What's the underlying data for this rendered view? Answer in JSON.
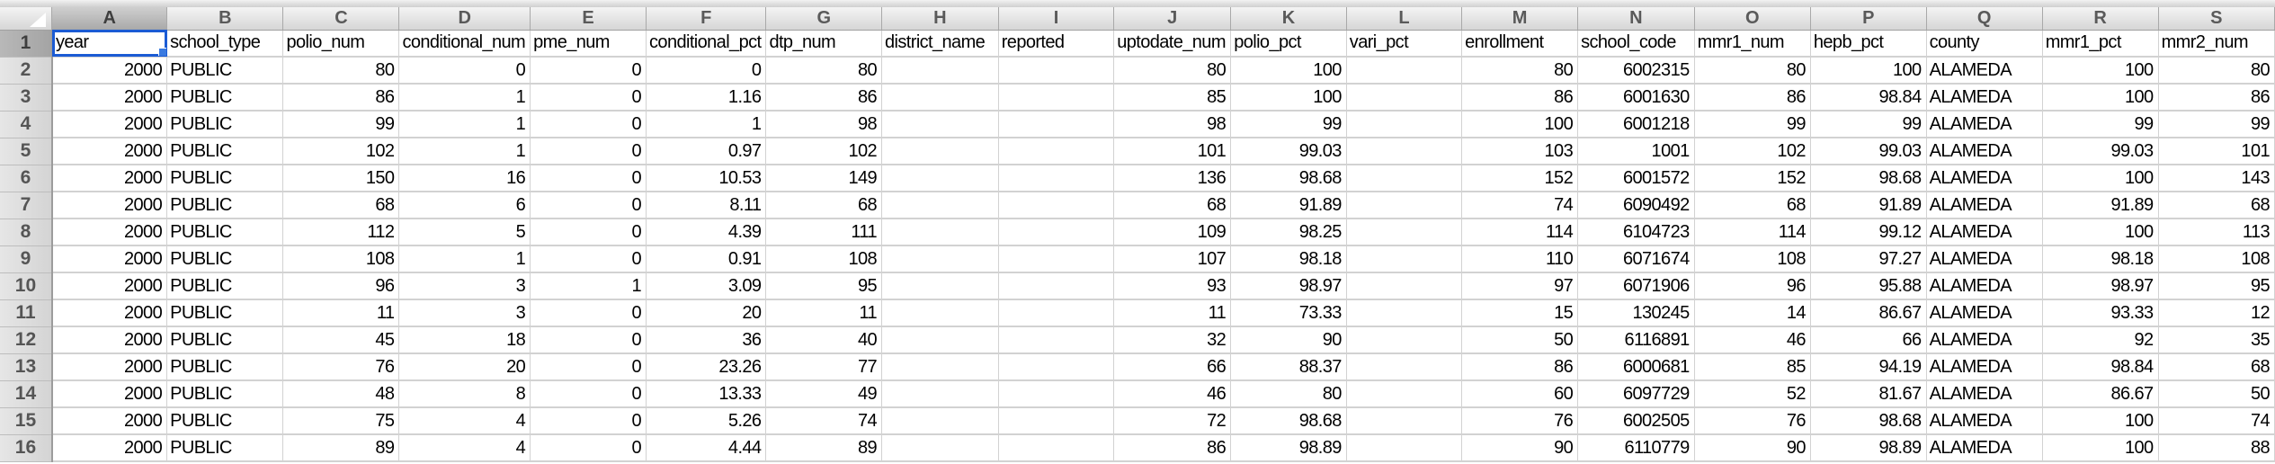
{
  "sheet": {
    "columns": [
      "A",
      "B",
      "C",
      "D",
      "E",
      "F",
      "G",
      "H",
      "I",
      "J",
      "K",
      "L",
      "M",
      "N",
      "O",
      "P",
      "Q",
      "R",
      "S"
    ],
    "selected_cell": "A1",
    "rows": [
      [
        "year",
        "school_type",
        "polio_num",
        "conditional_num",
        "pme_num",
        "conditional_pct",
        "dtp_num",
        "district_name",
        "reported",
        "uptodate_num",
        "polio_pct",
        "vari_pct",
        "enrollment",
        "school_code",
        "mmr1_num",
        "hepb_pct",
        "county",
        "mmr1_pct",
        "mmr2_num"
      ],
      [
        "2000",
        "PUBLIC",
        "80",
        "0",
        "0",
        "0",
        "80",
        "",
        "",
        "80",
        "100",
        "",
        "80",
        "6002315",
        "80",
        "100",
        "ALAMEDA",
        "100",
        "80"
      ],
      [
        "2000",
        "PUBLIC",
        "86",
        "1",
        "0",
        "1.16",
        "86",
        "",
        "",
        "85",
        "100",
        "",
        "86",
        "6001630",
        "86",
        "98.84",
        "ALAMEDA",
        "100",
        "86"
      ],
      [
        "2000",
        "PUBLIC",
        "99",
        "1",
        "0",
        "1",
        "98",
        "",
        "",
        "98",
        "99",
        "",
        "100",
        "6001218",
        "99",
        "99",
        "ALAMEDA",
        "99",
        "99"
      ],
      [
        "2000",
        "PUBLIC",
        "102",
        "1",
        "0",
        "0.97",
        "102",
        "",
        "",
        "101",
        "99.03",
        "",
        "103",
        "1001",
        "102",
        "99.03",
        "ALAMEDA",
        "99.03",
        "101"
      ],
      [
        "2000",
        "PUBLIC",
        "150",
        "16",
        "0",
        "10.53",
        "149",
        "",
        "",
        "136",
        "98.68",
        "",
        "152",
        "6001572",
        "152",
        "98.68",
        "ALAMEDA",
        "100",
        "143"
      ],
      [
        "2000",
        "PUBLIC",
        "68",
        "6",
        "0",
        "8.11",
        "68",
        "",
        "",
        "68",
        "91.89",
        "",
        "74",
        "6090492",
        "68",
        "91.89",
        "ALAMEDA",
        "91.89",
        "68"
      ],
      [
        "2000",
        "PUBLIC",
        "112",
        "5",
        "0",
        "4.39",
        "111",
        "",
        "",
        "109",
        "98.25",
        "",
        "114",
        "6104723",
        "114",
        "99.12",
        "ALAMEDA",
        "100",
        "113"
      ],
      [
        "2000",
        "PUBLIC",
        "108",
        "1",
        "0",
        "0.91",
        "108",
        "",
        "",
        "107",
        "98.18",
        "",
        "110",
        "6071674",
        "108",
        "97.27",
        "ALAMEDA",
        "98.18",
        "108"
      ],
      [
        "2000",
        "PUBLIC",
        "96",
        "3",
        "1",
        "3.09",
        "95",
        "",
        "",
        "93",
        "98.97",
        "",
        "97",
        "6071906",
        "96",
        "95.88",
        "ALAMEDA",
        "98.97",
        "95"
      ],
      [
        "2000",
        "PUBLIC",
        "11",
        "3",
        "0",
        "20",
        "11",
        "",
        "",
        "11",
        "73.33",
        "",
        "15",
        "130245",
        "14",
        "86.67",
        "ALAMEDA",
        "93.33",
        "12"
      ],
      [
        "2000",
        "PUBLIC",
        "45",
        "18",
        "0",
        "36",
        "40",
        "",
        "",
        "32",
        "90",
        "",
        "50",
        "6116891",
        "46",
        "66",
        "ALAMEDA",
        "92",
        "35"
      ],
      [
        "2000",
        "PUBLIC",
        "76",
        "20",
        "0",
        "23.26",
        "77",
        "",
        "",
        "66",
        "88.37",
        "",
        "86",
        "6000681",
        "85",
        "94.19",
        "ALAMEDA",
        "98.84",
        "68"
      ],
      [
        "2000",
        "PUBLIC",
        "48",
        "8",
        "0",
        "13.33",
        "49",
        "",
        "",
        "46",
        "80",
        "",
        "60",
        "6097729",
        "52",
        "81.67",
        "ALAMEDA",
        "86.67",
        "50"
      ],
      [
        "2000",
        "PUBLIC",
        "75",
        "4",
        "0",
        "5.26",
        "74",
        "",
        "",
        "72",
        "98.68",
        "",
        "76",
        "6002505",
        "76",
        "98.68",
        "ALAMEDA",
        "100",
        "74"
      ],
      [
        "2000",
        "PUBLIC",
        "89",
        "4",
        "0",
        "4.44",
        "89",
        "",
        "",
        "86",
        "98.89",
        "",
        "90",
        "6110779",
        "90",
        "98.89",
        "ALAMEDA",
        "100",
        "88"
      ]
    ]
  },
  "colors": {
    "selection": "#1b5bd4",
    "grid": "#d2d2d2",
    "header_bg": "#dcdcdc"
  }
}
